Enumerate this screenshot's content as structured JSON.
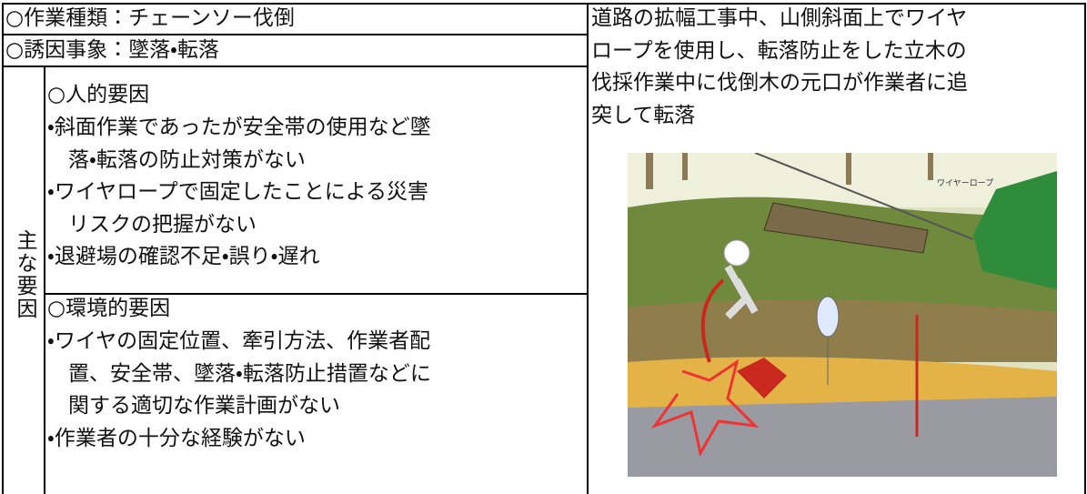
{
  "rows": [
    {
      "label": "○作業種類：チェーンソー伐倒"
    },
    {
      "label": "○誘因事象：墜落・転落"
    }
  ],
  "side_label": "主な要因",
  "factors": [
    {
      "heading": "○人的要因",
      "lines": [
        "・斜面作業であったが安全帯の使用など墜",
        "　落・転落の防止対策がない",
        "・ワイヤロープで固定したことによる災害",
        "　リスクの把握がない",
        "・退避場の確認不足・誤り・遅れ"
      ]
    },
    {
      "heading": "○環境的要因",
      "lines": [
        "・ワイヤの固定位置、牽引方法、作業者配",
        "　置、安全帯、墜落・転落防止措置などに",
        "　関する適切な作業計画がない",
        "・作業者の十分な経験がない"
      ]
    }
  ],
  "description": [
    "道路の拡幅工事中、山側斜面上でワイヤ",
    "ロープを使用し、転落防止をした立木の",
    "伐採作業中に伐倒木の元口が作業者に追",
    "突して転落"
  ],
  "illustration": {
    "rope_label": "ワイヤーロープ"
  }
}
